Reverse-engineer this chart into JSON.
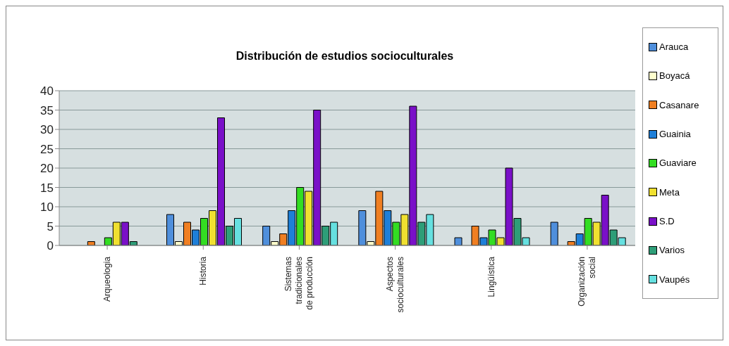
{
  "chart_data": {
    "type": "bar",
    "title": "Distribución de estudios socioculturales",
    "categories": [
      "Arqueologia",
      "Historia",
      "Sistemas tradicionales de producción",
      "Aspectos socioculturales",
      "Lingüística",
      "Organización social"
    ],
    "series": [
      {
        "name": "Arauca",
        "color": "#4f8fdc",
        "values": [
          0,
          8,
          5,
          9,
          2,
          6
        ]
      },
      {
        "name": "Boyacá",
        "color": "#ffffcc",
        "values": [
          0,
          1,
          1,
          1,
          0,
          0
        ]
      },
      {
        "name": "Casanare",
        "color": "#f07f22",
        "values": [
          1,
          6,
          3,
          14,
          5,
          1
        ]
      },
      {
        "name": "Guainia",
        "color": "#1e7fd8",
        "values": [
          0,
          4,
          9,
          9,
          2,
          3
        ]
      },
      {
        "name": "Guaviare",
        "color": "#33dd22",
        "values": [
          2,
          7,
          15,
          6,
          4,
          7
        ]
      },
      {
        "name": "Meta",
        "color": "#f0e030",
        "values": [
          6,
          9,
          14,
          8,
          2,
          6
        ]
      },
      {
        "name": "S.D",
        "color": "#7a10c8",
        "values": [
          6,
          33,
          35,
          36,
          20,
          13
        ]
      },
      {
        "name": "Varios",
        "color": "#2e9e78",
        "values": [
          1,
          5,
          5,
          6,
          7,
          4
        ]
      },
      {
        "name": "Vaupés",
        "color": "#66e0e0",
        "values": [
          0,
          7,
          6,
          8,
          2,
          2
        ]
      }
    ],
    "ylim": [
      0,
      40
    ],
    "yticks": [
      0,
      5,
      10,
      15,
      20,
      25,
      30,
      35,
      40
    ],
    "grid": "y",
    "legend": "right"
  }
}
